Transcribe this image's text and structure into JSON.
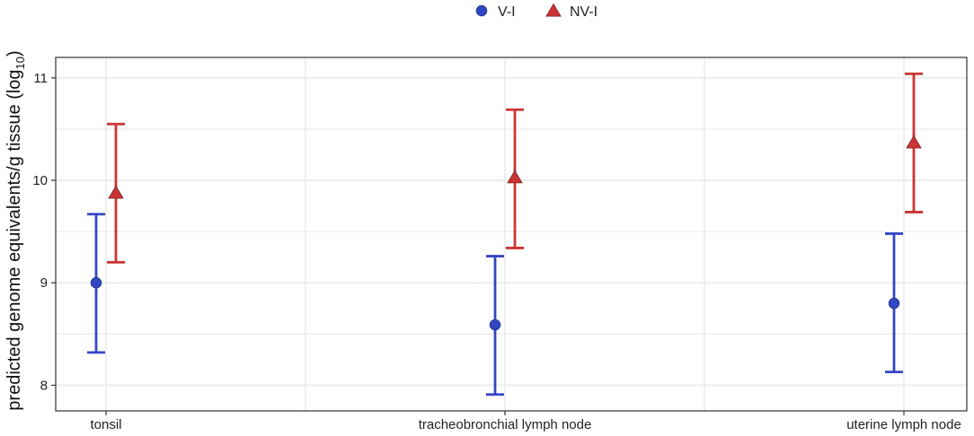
{
  "chart_data": {
    "type": "scatter",
    "categories": [
      "tonsil",
      "tracheobronchial lymph node",
      "uterine lymph node"
    ],
    "ylabel": "predicted genome equivalents/g tissue (log",
    "ylabel_sub": "10",
    "ylabel_end": ")",
    "ylim": [
      7.75,
      11.2
    ],
    "yticks": [
      "8",
      "9",
      "10",
      "11"
    ],
    "grid": true,
    "legend_position": "top",
    "series": [
      {
        "name": "V-I",
        "marker": "circle",
        "color": "#3347c4",
        "values": [
          9.0,
          8.59,
          8.8
        ],
        "lower": [
          8.32,
          7.91,
          8.13
        ],
        "upper": [
          9.67,
          9.26,
          9.48
        ]
      },
      {
        "name": "NV-I",
        "marker": "triangle",
        "color": "#cc3333",
        "values": [
          9.87,
          10.02,
          10.36
        ],
        "lower": [
          9.2,
          9.34,
          9.69
        ],
        "upper": [
          10.55,
          10.69,
          11.04
        ]
      }
    ]
  }
}
